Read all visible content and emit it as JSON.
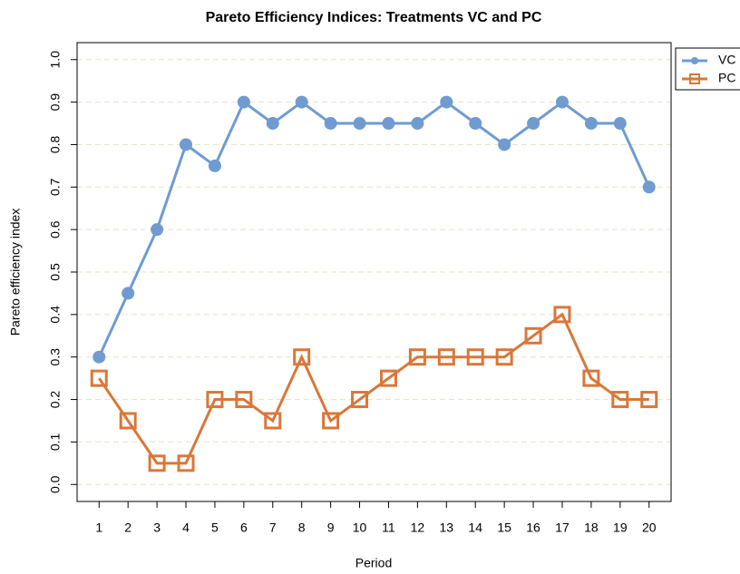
{
  "chart_data": {
    "type": "line",
    "title": "Pareto Efficiency Indices: Treatments VC and PC",
    "x_label": "Period",
    "y_label": "Pareto efficiency index",
    "x": [
      1,
      2,
      3,
      4,
      5,
      6,
      7,
      8,
      9,
      10,
      11,
      12,
      13,
      14,
      15,
      16,
      17,
      18,
      19,
      20
    ],
    "series": [
      {
        "name": "VC",
        "color": "#6f9bd1",
        "marker": "circle",
        "values": [
          0.3,
          0.45,
          0.6,
          0.8,
          0.75,
          0.9,
          0.85,
          0.9,
          0.85,
          0.85,
          0.85,
          0.85,
          0.9,
          0.85,
          0.8,
          0.85,
          0.9,
          0.85,
          0.85,
          0.7
        ]
      },
      {
        "name": "PC",
        "color": "#d9773a",
        "marker": "square",
        "values": [
          0.25,
          0.15,
          0.05,
          0.05,
          0.2,
          0.2,
          0.15,
          0.3,
          0.15,
          0.2,
          0.25,
          0.3,
          0.3,
          0.3,
          0.3,
          0.35,
          0.4,
          0.25,
          0.2,
          0.2
        ]
      }
    ],
    "xlim": [
      0.24,
      20.76
    ],
    "ylim": [
      -0.04,
      1.04
    ],
    "xticks": [
      1,
      2,
      3,
      4,
      5,
      6,
      7,
      8,
      9,
      10,
      11,
      12,
      13,
      14,
      15,
      16,
      17,
      18,
      19,
      20
    ],
    "yticks": [
      {
        "value": 0,
        "label": "0.0"
      },
      0.1,
      0.2,
      0.3,
      0.4,
      0.5,
      0.6,
      0.7,
      0.8,
      0.9,
      {
        "value": 1,
        "label": "1.0"
      }
    ],
    "grid": true,
    "legend": "topright"
  }
}
